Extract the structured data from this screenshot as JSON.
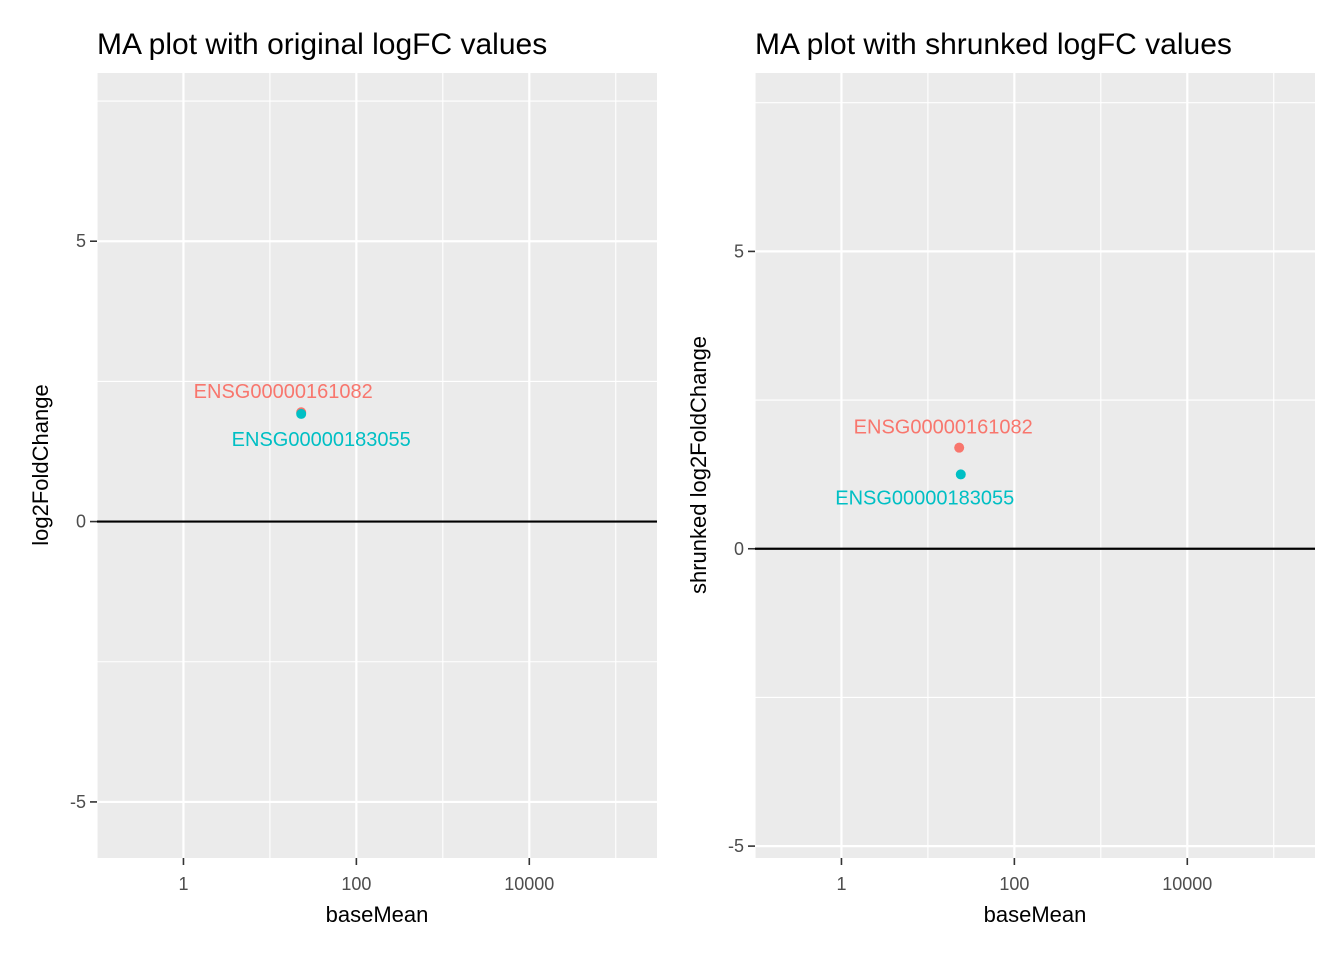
{
  "chart_data": [
    {
      "type": "scatter",
      "title": "MA plot with original logFC values",
      "xlabel": "baseMean",
      "ylabel": "log2FoldChange",
      "x_scale": "log10",
      "xlim": [
        0.1,
        300000
      ],
      "ylim": [
        -6,
        8
      ],
      "x_ticks": [
        1,
        100,
        10000
      ],
      "x_tick_labels": [
        "1",
        "100",
        "10000"
      ],
      "y_ticks": [
        -5,
        0,
        5
      ],
      "y_tick_labels": [
        "-5",
        "0",
        "5"
      ],
      "x_minor_ticks": [
        0.1,
        10,
        1000,
        100000
      ],
      "y_minor_ticks": [
        -2.5,
        2.5,
        7.5
      ],
      "grid": true,
      "hline": 0,
      "points": [
        {
          "gene": "ENSG00000161082",
          "x": 23,
          "y": 1.95,
          "color": "#F8766D"
        },
        {
          "gene": "ENSG00000183055",
          "x": 23,
          "y": 1.92,
          "color": "#00BFC4"
        }
      ]
    },
    {
      "type": "scatter",
      "title": "MA plot with shrunked logFC values",
      "xlabel": "baseMean",
      "ylabel": "shrunked log2FoldChange",
      "x_scale": "log10",
      "xlim": [
        0.1,
        300000
      ],
      "ylim": [
        -5.2,
        8
      ],
      "x_ticks": [
        1,
        100,
        10000
      ],
      "x_tick_labels": [
        "1",
        "100",
        "10000"
      ],
      "y_ticks": [
        -5,
        0,
        5
      ],
      "y_tick_labels": [
        "-5",
        "0",
        "5"
      ],
      "x_minor_ticks": [
        0.1,
        10,
        1000,
        100000
      ],
      "y_minor_ticks": [
        -2.5,
        2.5,
        7.5
      ],
      "grid": true,
      "hline": 0,
      "points": [
        {
          "gene": "ENSG00000161082",
          "x": 23,
          "y": 1.7,
          "color": "#F8766D"
        },
        {
          "gene": "ENSG00000183055",
          "x": 24,
          "y": 1.25,
          "color": "#00BFC4"
        }
      ]
    }
  ]
}
